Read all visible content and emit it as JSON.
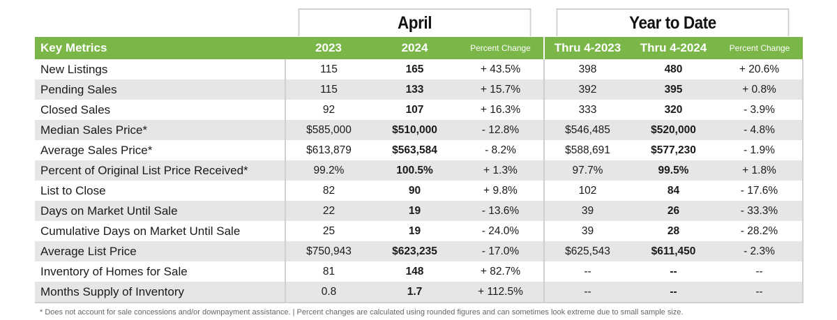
{
  "header": {
    "april": "April",
    "ytd": "Year to Date"
  },
  "columns": {
    "metric": "Key Metrics",
    "april_2023": "2023",
    "april_2024": "2024",
    "april_pct": "Percent Change",
    "ytd_2023": "Thru 4-2023",
    "ytd_2024": "Thru 4-2024",
    "ytd_pct": "Percent Change"
  },
  "rows": [
    {
      "metric": "New Listings",
      "a23": "115",
      "a24": "165",
      "apct": "+ 43.5%",
      "y23": "398",
      "y24": "480",
      "ypct": "+ 20.6%"
    },
    {
      "metric": "Pending Sales",
      "a23": "115",
      "a24": "133",
      "apct": "+ 15.7%",
      "y23": "392",
      "y24": "395",
      "ypct": "+ 0.8%"
    },
    {
      "metric": "Closed Sales",
      "a23": "92",
      "a24": "107",
      "apct": "+ 16.3%",
      "y23": "333",
      "y24": "320",
      "ypct": "- 3.9%"
    },
    {
      "metric": "Median Sales Price*",
      "a23": "$585,000",
      "a24": "$510,000",
      "apct": "- 12.8%",
      "y23": "$546,485",
      "y24": "$520,000",
      "ypct": "- 4.8%"
    },
    {
      "metric": "Average Sales Price*",
      "a23": "$613,879",
      "a24": "$563,584",
      "apct": "- 8.2%",
      "y23": "$588,691",
      "y24": "$577,230",
      "ypct": "- 1.9%"
    },
    {
      "metric": "Percent of Original List Price Received*",
      "a23": "99.2%",
      "a24": "100.5%",
      "apct": "+ 1.3%",
      "y23": "97.7%",
      "y24": "99.5%",
      "ypct": "+ 1.8%"
    },
    {
      "metric": "List to Close",
      "a23": "82",
      "a24": "90",
      "apct": "+ 9.8%",
      "y23": "102",
      "y24": "84",
      "ypct": "- 17.6%"
    },
    {
      "metric": "Days on Market Until Sale",
      "a23": "22",
      "a24": "19",
      "apct": "- 13.6%",
      "y23": "39",
      "y24": "26",
      "ypct": "- 33.3%"
    },
    {
      "metric": "Cumulative Days on Market Until Sale",
      "a23": "25",
      "a24": "19",
      "apct": "- 24.0%",
      "y23": "39",
      "y24": "28",
      "ypct": "- 28.2%"
    },
    {
      "metric": "Average List Price",
      "a23": "$750,943",
      "a24": "$623,235",
      "apct": "- 17.0%",
      "y23": "$625,543",
      "y24": "$611,450",
      "ypct": "- 2.3%"
    },
    {
      "metric": "Inventory of Homes for Sale",
      "a23": "81",
      "a24": "148",
      "apct": "+ 82.7%",
      "y23": "--",
      "y24": "--",
      "ypct": "--"
    },
    {
      "metric": "Months Supply of Inventory",
      "a23": "0.8",
      "a24": "1.7",
      "apct": "+ 112.5%",
      "y23": "--",
      "y24": "--",
      "ypct": "--"
    }
  ],
  "footnote": "* Does not account for sale concessions and/or downpayment assistance.  |  Percent changes are calculated using rounded figures and can sometimes look extreme due to small sample size.",
  "colors": {
    "header_green": "#7ab648",
    "stripe_gray": "#e6e6e6",
    "border_gray": "#cfcfcf"
  }
}
